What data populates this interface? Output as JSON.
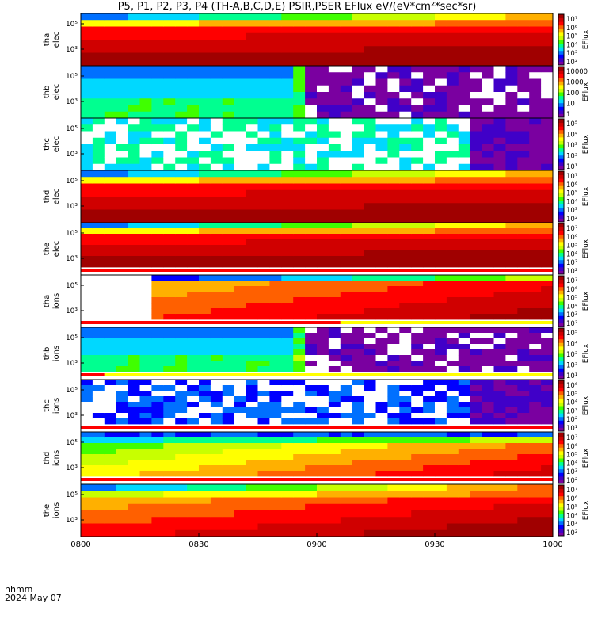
{
  "title": "P5, P1, P2, P3, P4 (TH-A,B,C,D,E) PSIR,PSER EFlux eV/(eV*cm²*sec*sr)",
  "footer": {
    "time_format": "hhmm",
    "date": "2024 May 07"
  },
  "colors": {
    "colormap": [
      "#ffffff",
      "#7a00a0",
      "#4000c8",
      "#0000ff",
      "#0070ff",
      "#00d8ff",
      "#00ff90",
      "#40ff00",
      "#c8ff00",
      "#ffff00",
      "#ffb000",
      "#ff6000",
      "#ff0000",
      "#d00000",
      "#a00000"
    ],
    "band_red": "#ff0000",
    "band_yellow": "#ffff00",
    "background": "#ffffff"
  },
  "chart_data": {
    "type": "heatmap",
    "x_axis": {
      "label": "hhmm",
      "ticks": [
        "0800",
        "0830",
        "0900",
        "0930",
        "1000"
      ],
      "range": [
        "08:00",
        "10:00"
      ]
    },
    "panels": [
      {
        "probe": "tha",
        "species": "elec",
        "ylabel_1": "tha",
        "ylabel_2": "elec",
        "y_ticks": [
          "10⁵",
          "10³"
        ],
        "colorbar_label": "EFlux",
        "colorbar_ticks": [
          "10⁷",
          "10⁶",
          "10⁵",
          "10⁴",
          "10³",
          "10²"
        ],
        "pattern": "hot",
        "band": null
      },
      {
        "probe": "thb",
        "species": "elec",
        "ylabel_1": "thb",
        "ylabel_2": "elec",
        "y_ticks": [
          "10⁵",
          "10³"
        ],
        "colorbar_label": "EFlux",
        "colorbar_ticks": [
          "10000",
          "1000",
          "100",
          "10",
          "1"
        ],
        "pattern": "cool_then_noise",
        "band": null
      },
      {
        "probe": "thc",
        "species": "elec",
        "ylabel_1": "thc",
        "ylabel_2": "elec",
        "y_ticks": [
          "10⁵",
          "10³"
        ],
        "colorbar_label": "EFlux",
        "colorbar_ticks": [
          "10⁵",
          "10⁴",
          "10³",
          "10²",
          "10¹"
        ],
        "pattern": "noise_green",
        "band": null
      },
      {
        "probe": "thd",
        "species": "elec",
        "ylabel_1": "thd",
        "ylabel_2": "elec",
        "y_ticks": [
          "10⁵",
          "10³"
        ],
        "colorbar_label": "EFlux",
        "colorbar_ticks": [
          "10⁷",
          "10⁶",
          "10⁵",
          "10⁴",
          "10³",
          "10²"
        ],
        "pattern": "hot",
        "band": null
      },
      {
        "probe": "the",
        "species": "elec",
        "ylabel_1": "the",
        "ylabel_2": "elec",
        "y_ticks": [
          "10⁵",
          "10³"
        ],
        "colorbar_label": "EFlux",
        "colorbar_ticks": [
          "10⁷",
          "10⁶",
          "10⁵",
          "10⁴",
          "10³",
          "10²"
        ],
        "pattern": "hot",
        "band": "red_full"
      },
      {
        "probe": "tha",
        "species": "ions",
        "ylabel_1": "tha",
        "ylabel_2": "ions",
        "y_ticks": [
          "10⁵",
          "10³"
        ],
        "colorbar_label": "EFlux",
        "colorbar_ticks": [
          "10⁷",
          "10⁶",
          "10⁵",
          "10⁴",
          "10³",
          "10²"
        ],
        "pattern": "ions_gap",
        "band": "red_yellow_55"
      },
      {
        "probe": "thb",
        "species": "ions",
        "ylabel_1": "thb",
        "ylabel_2": "ions",
        "y_ticks": [
          "10⁵",
          "10³"
        ],
        "colorbar_label": "EFlux",
        "colorbar_ticks": [
          "10⁵",
          "10⁴",
          "10³",
          "10²",
          "10¹"
        ],
        "pattern": "cool_then_noise",
        "band": "red_yellow_05"
      },
      {
        "probe": "thc",
        "species": "ions",
        "ylabel_1": "thc",
        "ylabel_2": "ions",
        "y_ticks": [
          "10⁵",
          "10³"
        ],
        "colorbar_label": "EFlux",
        "colorbar_ticks": [
          "10⁶",
          "10⁵",
          "10⁴",
          "10³",
          "10²",
          "10¹"
        ],
        "pattern": "noise_blue",
        "band": "red_full"
      },
      {
        "probe": "thd",
        "species": "ions",
        "ylabel_1": "thd",
        "ylabel_2": "ions",
        "y_ticks": [
          "10⁵",
          "10³"
        ],
        "colorbar_label": "EFlux",
        "colorbar_ticks": [
          "10⁷",
          "10⁶",
          "10⁵",
          "10⁴",
          "10³",
          "10²"
        ],
        "pattern": "warm_gradient",
        "band": "red_full"
      },
      {
        "probe": "the",
        "species": "ions",
        "ylabel_1": "the",
        "ylabel_2": "ions",
        "y_ticks": [
          "10⁵",
          "10³"
        ],
        "colorbar_label": "EFlux",
        "colorbar_ticks": [
          "10⁷",
          "10⁶",
          "10⁵",
          "10⁴",
          "10³",
          "10²"
        ],
        "pattern": "hot_ions",
        "band": null
      }
    ]
  }
}
